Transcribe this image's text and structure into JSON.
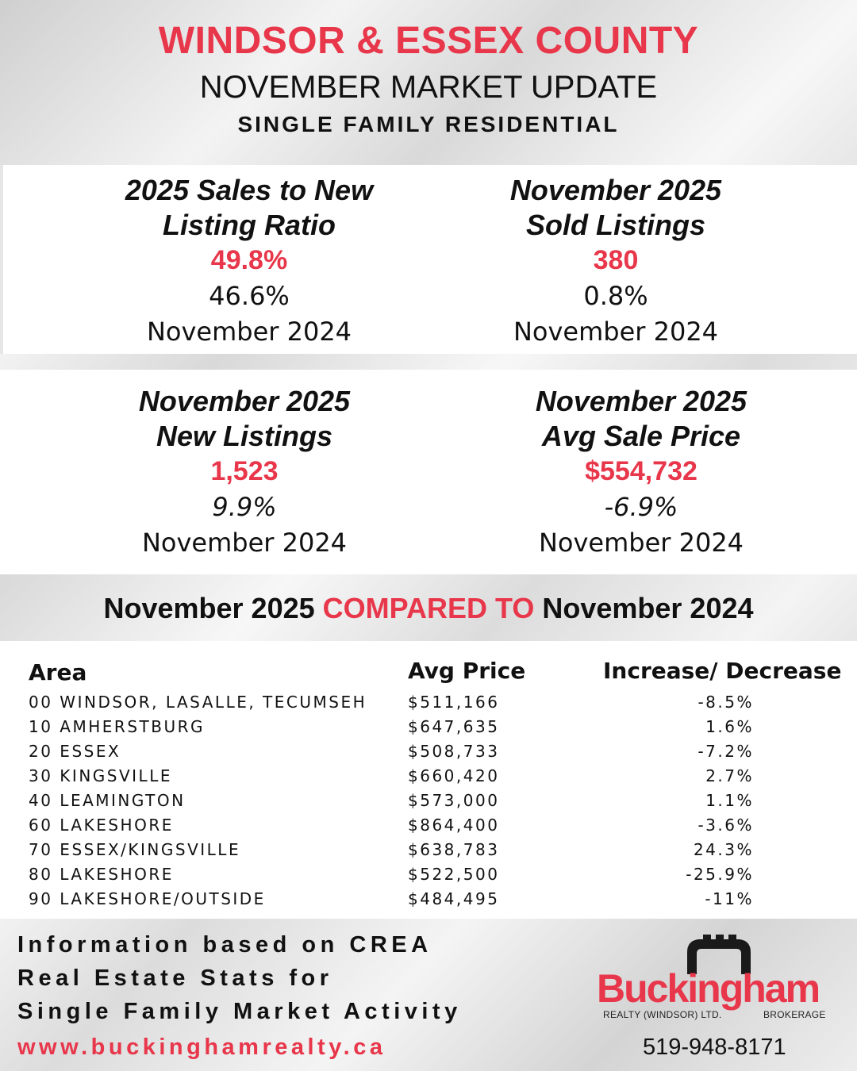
{
  "header": {
    "title": "WINDSOR & ESSEX COUNTY",
    "subtitle": "NOVEMBER MARKET UPDATE",
    "category": "SINGLE FAMILY RESIDENTIAL"
  },
  "stats": [
    {
      "title_line1": "2025 Sales to New",
      "title_line2": "Listing Ratio",
      "value": "49.8%",
      "change": "46.6%",
      "period": "November 2024"
    },
    {
      "title_line1": "November 2025",
      "title_line2": "Sold Listings",
      "value": "380",
      "change": "0.8%",
      "period": "November 2024"
    },
    {
      "title_line1": "November 2025",
      "title_line2": "New Listings",
      "value": "1,523",
      "change": "9.9%",
      "period": "November 2024"
    },
    {
      "title_line1": "November 2025",
      "title_line2": "Avg Sale Price",
      "value": "$554,732",
      "change": "-6.9%",
      "period": "November 2024"
    }
  ],
  "compare": {
    "left": "November 2025",
    "middle": "COMPARED TO",
    "right": "November 2024"
  },
  "table": {
    "headers": {
      "area": "Area",
      "price": "Avg Price",
      "change": "Increase/ Decrease"
    },
    "rows": [
      {
        "area": "00 WINDSOR, LASALLE, TECUMSEH",
        "price": "$511,166",
        "change": "-8.5%"
      },
      {
        "area": "10 AMHERSTBURG",
        "price": "$647,635",
        "change": "1.6%"
      },
      {
        "area": "20 ESSEX",
        "price": "$508,733",
        "change": "-7.2%"
      },
      {
        "area": "30 KINGSVILLE",
        "price": "$660,420",
        "change": "2.7%"
      },
      {
        "area": "40 LEAMINGTON",
        "price": "$573,000",
        "change": "1.1%"
      },
      {
        "area": "60 LAKESHORE",
        "price": "$864,400",
        "change": "-3.6%"
      },
      {
        "area": "70 ESSEX/KINGSVILLE",
        "price": "$638,783",
        "change": "24.3%"
      },
      {
        "area": "80 LAKESHORE",
        "price": "$522,500",
        "change": "-25.9%"
      },
      {
        "area": "90 LAKESHORE/OUTSIDE",
        "price": "$484,495",
        "change": "-11%"
      }
    ]
  },
  "footer": {
    "info_line1": "Information based on CREA",
    "info_line2": "Real Estate Stats for",
    "info_line3": "Single Family Market Activity",
    "website": "www.buckinghamrealty.ca",
    "phone": "519-948-8171"
  },
  "logo": {
    "name": "Buckingham",
    "tagline_left": "REALTY (WINDSOR) LTD.",
    "tagline_right": "BROKERAGE",
    "icon": "castle-tower-icon",
    "color": "#e8364a"
  },
  "colors": {
    "accent": "#e8364a",
    "text": "#111111"
  }
}
